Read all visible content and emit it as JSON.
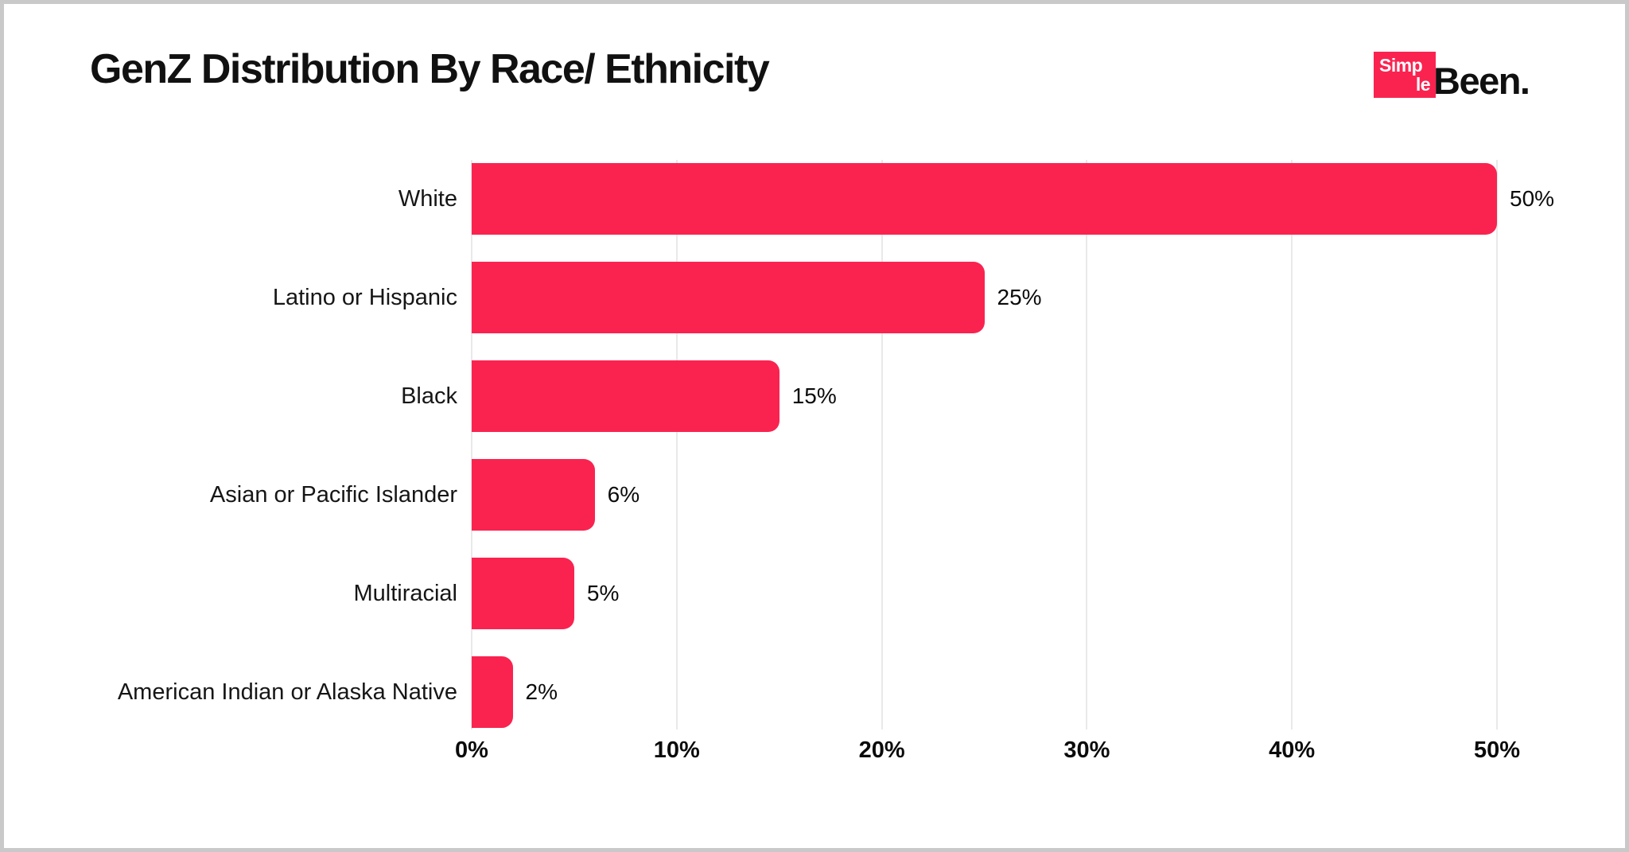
{
  "page": {
    "title": "GenZ Distribution By Race/ Ethnicity",
    "logo": {
      "box_line1": "Simp",
      "box_line2": "le",
      "wordmark": "Been."
    }
  },
  "colors": {
    "bar": "#fa2350",
    "logo_box": "#fa2350",
    "gridline": "#e9e9e9",
    "text": "#111111",
    "frame_border": "#c9c9c9",
    "background": "#ffffff"
  },
  "chart_data": {
    "type": "bar",
    "orientation": "horizontal",
    "title": "GenZ Distribution By Race/ Ethnicity",
    "categories": [
      "White",
      "Latino or Hispanic",
      "Black",
      "Asian or Pacific Islander",
      "Multiracial",
      "American Indian or Alaska Native"
    ],
    "values": [
      50,
      25,
      15,
      6,
      5,
      2
    ],
    "value_labels": [
      "50%",
      "25%",
      "15%",
      "6%",
      "5%",
      "2%"
    ],
    "x_ticks": [
      "0%",
      "10%",
      "20%",
      "30%",
      "40%",
      "50%"
    ],
    "x_tick_values": [
      0,
      10,
      20,
      30,
      40,
      50
    ],
    "xlim": [
      0,
      50
    ],
    "xlabel": "",
    "ylabel": "",
    "grid": "vertical",
    "legend": "none",
    "bar_value_position": "outside-end"
  }
}
